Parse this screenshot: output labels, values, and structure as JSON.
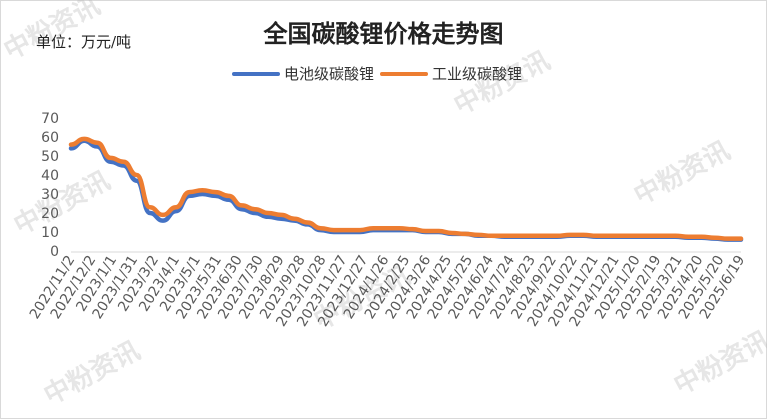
{
  "chart_data": {
    "type": "line",
    "title": "全国碳酸锂价格走势图",
    "unit_label": "单位：万元/吨",
    "ylim": [
      0,
      70
    ],
    "yticks": [
      0,
      10,
      20,
      30,
      40,
      50,
      60,
      70
    ],
    "grid": false,
    "legend_position": "top",
    "x_ticks": [
      "2022/11/2",
      "2022/12/2",
      "2023/1/1",
      "2023/1/31",
      "2023/3/2",
      "2023/4/1",
      "2023/5/1",
      "2023/5/31",
      "2023/6/30",
      "2023/7/30",
      "2023/8/29",
      "2023/9/28",
      "2023/10/28",
      "2023/11/27",
      "2023/12/27",
      "2024/1/26",
      "2024/2/25",
      "2024/3/26",
      "2024/4/25",
      "2024/5/25",
      "2024/6/24",
      "2024/7/24",
      "2024/8/23",
      "2024/9/22",
      "2024/10/22",
      "2024/11/21",
      "2024/12/21",
      "2025/1/20",
      "2025/2/19",
      "2025/3/21",
      "2025/4/20",
      "2025/5/20",
      "2025/6/19"
    ],
    "series": [
      {
        "name": "电池级碳酸锂",
        "color": "#4472c4",
        "values": [
          54,
          58,
          55,
          47,
          45,
          37,
          20,
          16,
          21,
          29,
          30,
          29,
          27,
          22,
          20,
          18,
          17,
          16,
          14,
          11,
          10,
          10,
          10,
          11,
          11,
          11,
          11,
          10,
          10,
          9,
          9,
          8,
          8,
          7.5,
          7.5,
          7.5,
          7.5,
          7.5,
          8,
          8,
          7.5,
          7.5,
          7.5,
          7.5,
          7.5,
          7.5,
          7.5,
          7,
          7,
          6.5,
          6,
          6
        ]
      },
      {
        "name": "工业级碳酸锂",
        "color": "#ed7d31",
        "values": [
          56,
          59,
          57,
          49,
          47,
          40,
          23,
          19,
          23,
          31,
          32,
          31,
          29,
          24,
          22,
          20,
          19,
          17,
          15,
          12,
          11,
          11,
          11,
          12,
          12,
          12,
          11.5,
          10.5,
          10.5,
          9.5,
          9,
          8.5,
          8,
          8,
          8,
          8,
          8,
          8,
          8.5,
          8.5,
          8,
          8,
          8,
          8,
          8,
          8,
          8,
          7.5,
          7.5,
          7,
          6.5,
          6.5
        ]
      }
    ]
  },
  "watermark": "中粉资讯"
}
